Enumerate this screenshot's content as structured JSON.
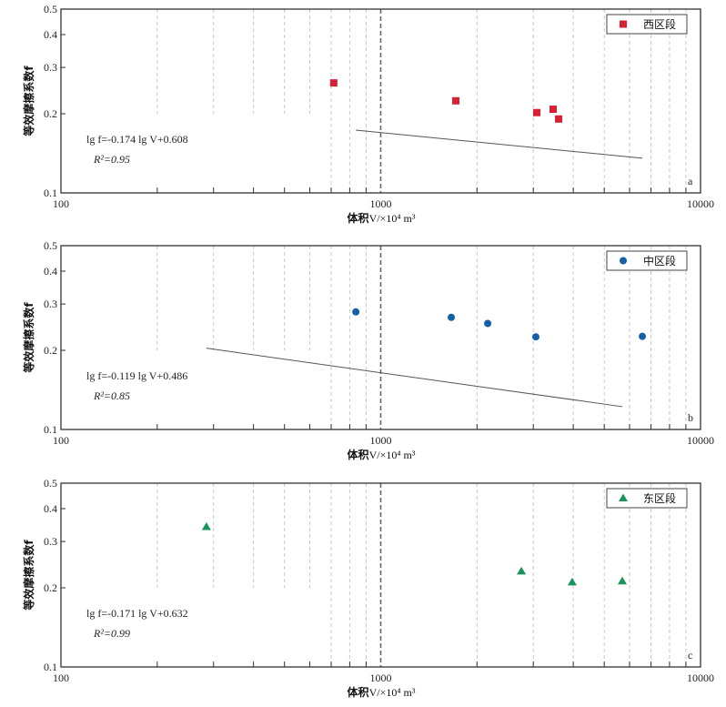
{
  "chart_data": [
    {
      "type": "scatter",
      "panel_label": "a",
      "xscale": "log",
      "yscale": "log",
      "xlim": [
        100,
        10000
      ],
      "ylim": [
        0.1,
        0.5
      ],
      "xticks": [
        "100",
        "1000",
        "10000"
      ],
      "yticks": [
        "0.1",
        "0.2",
        "0.3",
        "0.4",
        "0.5"
      ],
      "xlabel_cn": "体积",
      "xlabel_sym": "V/×10⁴ m³",
      "ylabel": "等效摩擦系数f",
      "legend": "西区段",
      "legend_position": "top-right",
      "marker": "square",
      "color": "#d92033",
      "series": [
        {
          "name": "西区段",
          "x": [
            713,
            1717,
            3076,
            3460,
            3600
          ],
          "y": [
            0.262,
            0.224,
            0.202,
            0.208,
            0.191
          ]
        }
      ],
      "fit": {
        "slope": -0.174,
        "intercept": 0.608,
        "x_range": [
          713,
          3600
        ]
      },
      "equation": "lg f=-0.174 lg V+0.608",
      "r2": "R²=0.95"
    },
    {
      "type": "scatter",
      "panel_label": "b",
      "xscale": "log",
      "yscale": "log",
      "xlim": [
        100,
        10000
      ],
      "ylim": [
        0.1,
        0.5
      ],
      "xticks": [
        "100",
        "1000",
        "10000"
      ],
      "yticks": [
        "0.1",
        "0.2",
        "0.3",
        "0.4",
        "0.5"
      ],
      "xlabel_cn": "体积",
      "xlabel_sym": "V/×10⁴ m³",
      "ylabel": "等效摩擦系数f",
      "legend": "中区段",
      "legend_position": "top-right",
      "marker": "circle",
      "color": "#1460a8",
      "series": [
        {
          "name": "中区段",
          "x": [
            836,
            1662,
            2160,
            3055,
            6577
          ],
          "y": [
            0.28,
            0.267,
            0.253,
            0.225,
            0.226
          ]
        }
      ],
      "fit": {
        "slope": -0.119,
        "intercept": 0.486,
        "x_range": [
          836,
          6577
        ]
      },
      "equation": "lg f=-0.119 lg V+0.486",
      "r2": "R²=0.85"
    },
    {
      "type": "scatter",
      "panel_label": "c",
      "xscale": "log",
      "yscale": "log",
      "xlim": [
        100,
        10000
      ],
      "ylim": [
        0.1,
        0.5
      ],
      "xticks": [
        "100",
        "1000",
        "10000"
      ],
      "yticks": [
        "0.1",
        "0.2",
        "0.3",
        "0.4",
        "0.5"
      ],
      "xlabel_cn": "体积",
      "xlabel_sym": "V/×10⁴ m³",
      "ylabel": "等效摩擦系数f",
      "legend": "东区段",
      "legend_position": "top-right",
      "marker": "triangle",
      "color": "#16955a",
      "series": [
        {
          "name": "东区段",
          "x": [
            285,
            2753,
            3969,
            5693
          ],
          "y": [
            0.341,
            0.231,
            0.21,
            0.212
          ]
        }
      ],
      "fit": {
        "slope": -0.171,
        "intercept": 0.632,
        "x_range": [
          285,
          5693
        ]
      },
      "equation": "lg f=-0.171 lg V+0.632",
      "r2": "R²=0.99"
    }
  ]
}
